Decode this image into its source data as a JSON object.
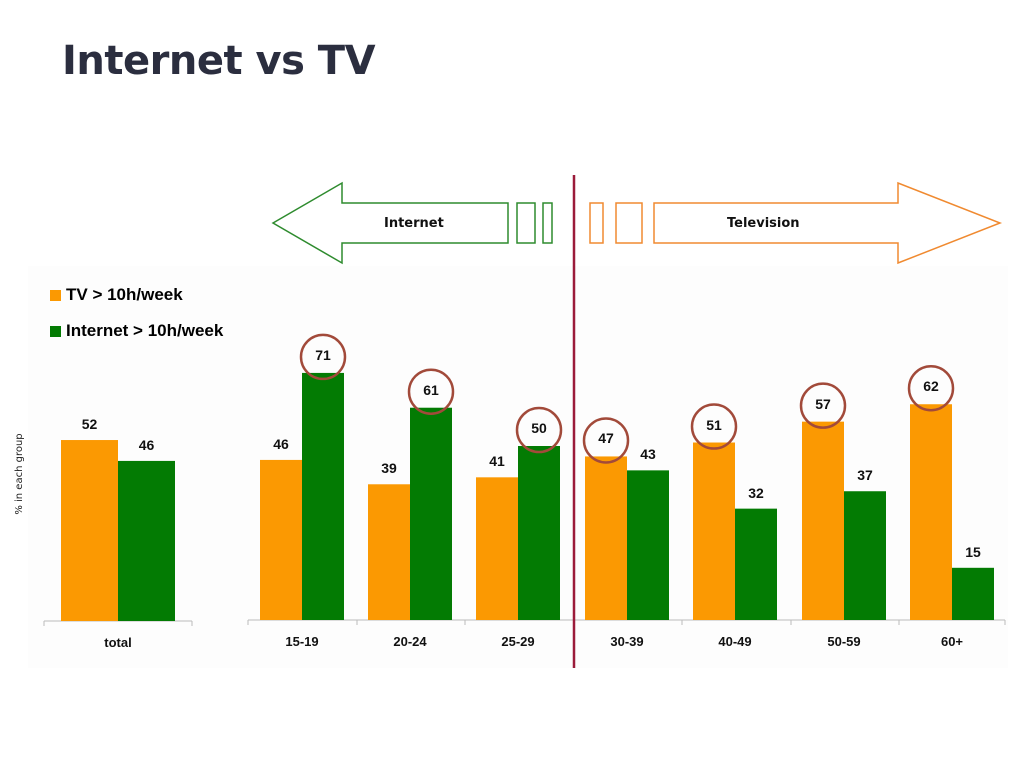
{
  "page": {
    "title": "Internet vs TV"
  },
  "arrows": {
    "left_label": "Internet",
    "right_label": "Television"
  },
  "colors": {
    "tv": "#fb9902",
    "internet": "#037b03",
    "divider": "#9b1b3a",
    "circle": "#a24a3a",
    "arrow_internet": "#2e8b2e",
    "arrow_tv": "#f08a30",
    "title": "#2b2e3f"
  },
  "chart_data": {
    "type": "bar",
    "title": "Internet vs TV",
    "xlabel": "",
    "ylabel": "% in each group",
    "categories": [
      "total",
      "15-19",
      "20-24",
      "25-29",
      "30-39",
      "40-49",
      "50-59",
      "60+"
    ],
    "series": [
      {
        "name": "TV > 10h/week",
        "values": [
          52,
          46,
          39,
          41,
          47,
          51,
          57,
          62
        ]
      },
      {
        "name": "Internet > 10h/week",
        "values": [
          46,
          71,
          61,
          50,
          43,
          32,
          37,
          15
        ]
      }
    ],
    "highlighted": [
      {
        "category": "15-19",
        "series": "Internet > 10h/week",
        "value": 71
      },
      {
        "category": "20-24",
        "series": "Internet > 10h/week",
        "value": 61
      },
      {
        "category": "25-29",
        "series": "Internet > 10h/week",
        "value": 50
      },
      {
        "category": "30-39",
        "series": "TV > 10h/week",
        "value": 47
      },
      {
        "category": "40-49",
        "series": "TV > 10h/week",
        "value": 51
      },
      {
        "category": "50-59",
        "series": "TV > 10h/week",
        "value": 57
      },
      {
        "category": "60+",
        "series": "TV > 10h/week",
        "value": 62
      }
    ],
    "annotations": [
      "Internet",
      "Television"
    ],
    "legend_position": "top-left",
    "grid": false,
    "ylim": [
      0,
      75
    ]
  },
  "legend": [
    {
      "label": "TV > 10h/week"
    },
    {
      "label": "Internet > 10h/week"
    }
  ]
}
